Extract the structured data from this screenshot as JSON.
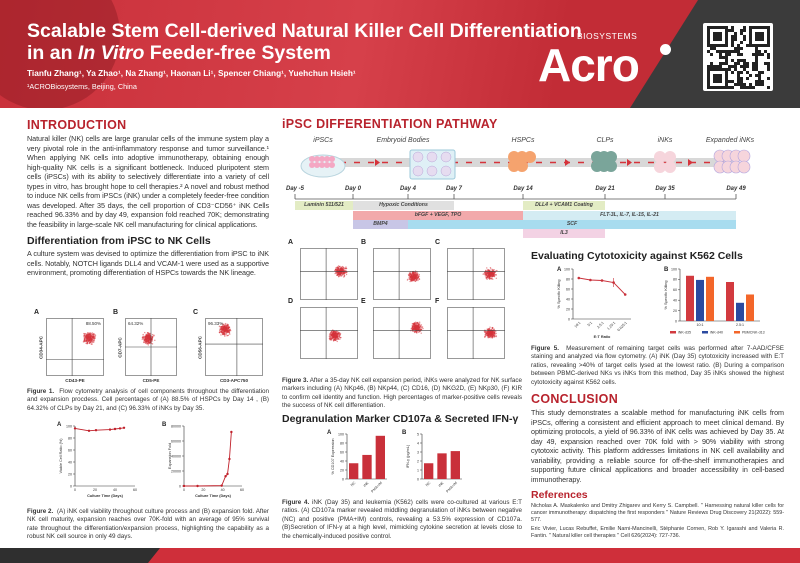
{
  "header": {
    "title_line1": "Scalable Stem Cell-derived Natural Killer Cell Differentiation",
    "title_line2_pre": "in an ",
    "title_line2_em": "In Vitro",
    "title_line2_post": " Feeder-free System",
    "authors": "Tianfu Zhang¹, Ya Zhao¹, Na Zhang¹, Haonan Li¹, Spencer Chiang¹, Yuehchun Hsieh¹",
    "affiliation": "¹ACROBiosystems, Beijing, China",
    "logo_text": "Acro",
    "logo_sub": "BIOSYSTEMS",
    "brand_color": "#c9303a"
  },
  "intro": {
    "heading": "INTRODUCTION",
    "body": "Natural killer (NK) cells are large granular cells of the immune system play a very pivotal role in the anti-inflammatory response and tumor surveillance.¹ When applying NK cells into adoptive immunotherapy, obtaining enough high-quality NK cells is a significant bottleneck. Induced pluripotent stem cells (iPSCs) with its ability to selectively differentiate into a variety of cell types in vitro, has brought hope to cell therapies.² A novel and robust method to induce NK cells from iPSCs (iNK) under a completely feeder-free condition was developed. After 35 days, the cell proportion of CD3⁻CD56⁺ iNK Cells reached 96.33% and by day 49, expansion fold reached 70K; demonstrating the feasibility in large-scale NK cell manufacturing for clinical applications."
  },
  "diff": {
    "heading": "Differentiation from iPSC to NK Cells",
    "body": "A culture system was devised to optimize the differentiation from iPSC to iNK cells. Notably, NOTCH ligands DLL4 and VCAM-1 were used as a supportive environment, promoting differentiation of HSPCs towards the NK lineage.",
    "fig1": {
      "panels": [
        {
          "label": "A",
          "value": "88.50%",
          "xaxis": "CD43-PE",
          "yaxis": "CD34-APC"
        },
        {
          "label": "B",
          "value": "64.32%",
          "xaxis": "CD5-PE",
          "yaxis": "CD7-APC"
        },
        {
          "label": "C",
          "value": "96.33%",
          "xaxis": "CD3-APC750",
          "yaxis": "CD56-APC"
        }
      ],
      "caption_label": "Figure 1.",
      "caption": "Flow cytometry analysis of cell components throughout the differentiation and expansion procdess. Cell percentages of (A) 88.5% of HSPCs by Day 14 , (B) 64.32% of CLPs by Day 21, and (C) 96.33% of iNKs by Day 35."
    },
    "fig2": {
      "caption_label": "Figure 2.",
      "caption": "(A) iNK cell viability throughout culture process and (B) expansion fold. After NK cell maturity, expansion reaches over 70K-fold with an average of 95% survival rate throughout the differentiation/expansion process, highlighting the capability as a robust NK cell source in only 49 days."
    }
  },
  "pathway": {
    "heading": "iPSC DIFFERENTIATION PATHWAY",
    "stages": [
      "iPSCs",
      "Embryoid Bodies",
      "HSPCs",
      "CLPs",
      "iNKs",
      "Expanded iNKs"
    ],
    "days": [
      "Day -5",
      "Day 0",
      "Day 4",
      "Day 7",
      "Day 14",
      "Day 21",
      "Day 35",
      "Day 49"
    ],
    "conditions": [
      {
        "label": "Laminin 511/521",
        "color": "#e3ecc4"
      },
      {
        "label": "Hypoxic Conditions",
        "color": "#e0e0e0"
      },
      {
        "label": "DLL4 + VCAM1 Coating",
        "color": "#e3ecc4"
      },
      {
        "label": "bFGF + VEGF, TPO",
        "color": "#f2a9ab"
      },
      {
        "label": "FLT-3L, IL-7, IL-15, IL-21",
        "color": "#d4ecf3"
      },
      {
        "label": "BMP4",
        "color": "#c8c6e6"
      },
      {
        "label": "SCF",
        "color": "#a8dcef"
      },
      {
        "label": "IL3",
        "color": "#f3d2e4"
      }
    ]
  },
  "fig3": {
    "panels": [
      "A",
      "B",
      "C",
      "D",
      "E",
      "F"
    ],
    "caption_label": "Figure 3.",
    "caption": "After a 35-day NK cell expansion period, iNKs were analyzed for NK surface markers including (A) NKp46, (B) NKp44, (C) CD16, (D) NKG2D, (E) NKp30, (F) KIR to confirm cell identity and function. High percentages of marker-positive cells reveals the success of NK cell differentiation."
  },
  "degran": {
    "heading": "Degranulation Marker CD107a & Secreted IFN-γ",
    "caption_label": "Figure 4.",
    "caption": "iNK (Day 35) and leukemia (K562) cells were co-cultured at various E:T ratios. (A) CD107a marker revealed middling degranulation of iNKs between negative (NC) and positive (PMA+IM) controls, revealing a 53.5% expression of CD107a. (B)Secretion of IFN-γ at a high level, mimicking cytokine secretion at levels close to the chemically-induced positive control."
  },
  "cyto": {
    "heading": "Evaluating Cytotoxicity against K562 Cells",
    "caption_label": "Figure 5.",
    "caption": "Measurement of remaining target cells was performed after 7-AAD/CFSE staining and analyzed via flow cytometry. (A) iNK (Day 35) cytotoxicity increased with E:T ratios, revealing >40% of target cells lysed at the lowest ratio. (B) During a comparison between PBMC-derived NKs vs iNKs from this method, Day 35 iNKs showed the highest cytotoxicity against K562 cells."
  },
  "conclusion": {
    "heading": "CONCLUSION",
    "body": "This study demonstrates a scalable method for manufacturing iNK cells from iPSCs, offering a consistent and efficient approach to meet clinical demand. By optimizing protocols, a yield of 96.33% of iNK cells was achieved by Day 35. At day 49, expansion reached over 70K fold with > 90% viability with strong cytotoxic activity. This platform addresses limitations in NK cell availability and variability, providing a reliable source for off-the-shelf immunotherapies and supporting future clinical applications and broader accessibility in cell-based immunotherapy."
  },
  "references": {
    "heading": "References",
    "items": [
      "Nicholas A. Maskalenko and Dmitry Zhigarev and Kerry S. Campbell. \" Harnessing natural killer cells for cancer immunotherapy: dispatching the first responders \" Nature Reviews Drug Discovery 21(2022): 559-577.",
      "Eric Vivier, Lucas Rebuffet, Emilie Narni-Mancinelli, Stéphanie Cornen, Rob Y. Igarashi and Valeria R. Fantin. \" Natural killer cell therapies \" Cell 626(2024): 727-736."
    ]
  },
  "chart_data": [
    {
      "id": "fig2a",
      "type": "line",
      "label": "A",
      "xlabel": "Culture Time (Days)",
      "ylabel": "Viable Cell Ratio (%)",
      "xlim": [
        0,
        60
      ],
      "ylim": [
        0,
        100
      ],
      "xticks": [
        0,
        20,
        40,
        60
      ],
      "yticks": [
        0,
        20,
        40,
        60,
        80,
        100
      ],
      "x": [
        0,
        14,
        21,
        35,
        40,
        45,
        49
      ],
      "y": [
        96,
        92,
        93,
        94,
        95,
        96,
        97
      ],
      "color": "#c0202a"
    },
    {
      "id": "fig2b",
      "type": "line",
      "label": "B",
      "xlabel": "Culture Time (Days)",
      "ylabel": "Expansion Fold",
      "xlim": [
        0,
        60
      ],
      "ylim": [
        0,
        80000
      ],
      "xticks": [
        0,
        20,
        40,
        60
      ],
      "yticks": [
        0,
        20000,
        40000,
        60000,
        80000
      ],
      "x": [
        0,
        14,
        39,
        43,
        45,
        47,
        49
      ],
      "y": [
        0,
        0,
        500,
        13000,
        16000,
        36000,
        72000
      ],
      "color": "#c0202a"
    },
    {
      "id": "fig4a",
      "type": "bar",
      "label": "A",
      "ylabel": "% CD107 Expression",
      "ylim": [
        0,
        100
      ],
      "yticks": [
        0,
        20,
        40,
        60,
        80,
        100
      ],
      "categories": [
        "NC",
        "iNK",
        "PMA+IM"
      ],
      "values": [
        35,
        53.5,
        96
      ],
      "color": "#c9303a"
    },
    {
      "id": "fig4b",
      "type": "bar",
      "label": "B",
      "ylabel": "IFN-γ (pg/mL)",
      "ylim": [
        0,
        5
      ],
      "yticks": [
        0,
        1,
        2,
        3,
        4,
        5
      ],
      "categories": [
        "NC",
        "iNK",
        "PMA+IM"
      ],
      "values": [
        1.75,
        2.85,
        3.1
      ],
      "color": "#c9303a"
    },
    {
      "id": "fig5a",
      "type": "line",
      "label": "A",
      "xlabel": "E:T Ratio",
      "ylabel": "% Specific Killing",
      "ylim": [
        0,
        100
      ],
      "yticks": [
        0,
        20,
        40,
        60,
        80,
        100
      ],
      "categories": [
        "10:1",
        "5:1",
        "2.5:1",
        "1.25:1",
        "0.625:1"
      ],
      "values": [
        82,
        78,
        77,
        73,
        49
      ],
      "color": "#c9303a"
    },
    {
      "id": "fig5b",
      "type": "bar",
      "label": "B",
      "ylabel": "% Specific Killing",
      "ylim": [
        0,
        100
      ],
      "yticks": [
        0,
        20,
        40,
        60,
        80,
        100
      ],
      "categories": [
        "10:1",
        "2.5:1"
      ],
      "series": [
        {
          "name": "iNK-d35",
          "values": [
            87,
            75
          ],
          "color": "#d23a3f"
        },
        {
          "name": "iNK-d40",
          "values": [
            79,
            35
          ],
          "color": "#2b4aa0"
        },
        {
          "name": "PBMCNK-d13",
          "values": [
            85,
            51
          ],
          "color": "#f3662a"
        }
      ]
    }
  ]
}
